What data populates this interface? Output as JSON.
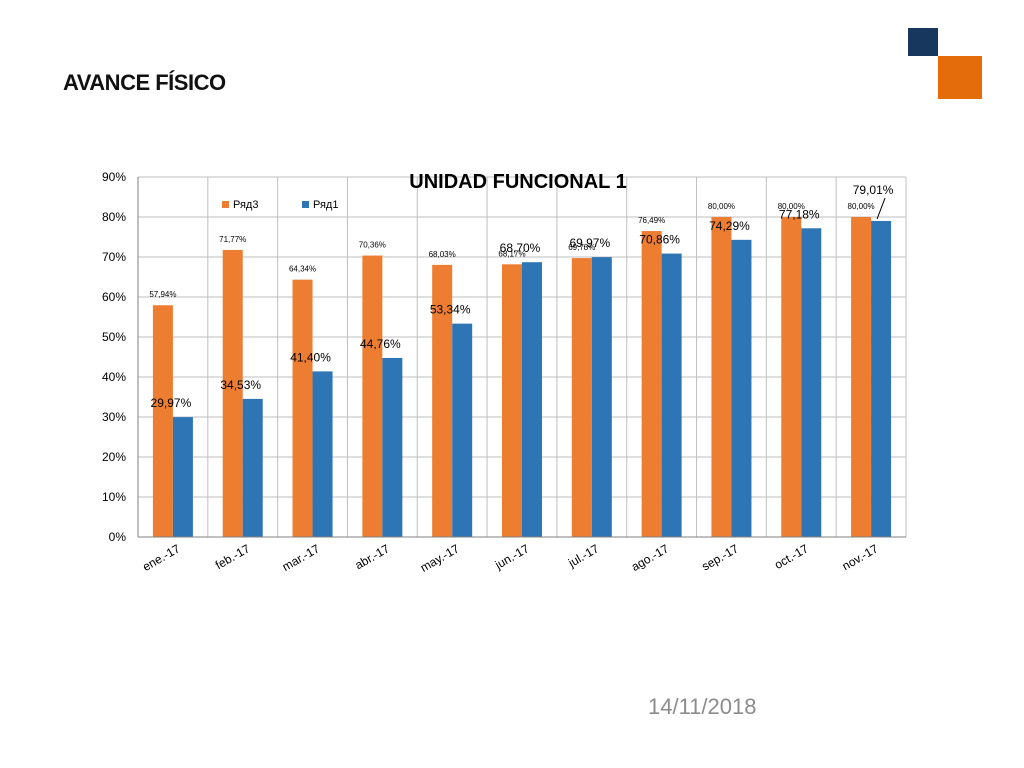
{
  "slide": {
    "title": "AVANCE FÍSICO",
    "date": "14/11/2018"
  },
  "colors": {
    "series_orange": "#ed7d31",
    "series_blue": "#2e75b6",
    "deco_dark": "#17375e",
    "deco_orange": "#e46c0a"
  },
  "chart_data": {
    "type": "bar",
    "title": "UNIDAD FUNCIONAL 1",
    "categories": [
      "ene.-17",
      "feb.-17",
      "mar.-17",
      "abr.-17",
      "may.-17",
      "jun.-17",
      "jul.-17",
      "ago.-17",
      "sep.-17",
      "oct.-17",
      "nov.-17"
    ],
    "series": [
      {
        "name": "Ряд3",
        "color": "#ed7d31",
        "values": [
          57.94,
          71.77,
          64.34,
          70.36,
          68.03,
          68.17,
          69.73,
          76.49,
          80.0,
          80.0,
          80.0
        ],
        "labels": [
          "57,94%",
          "71,77%",
          "64,34%",
          "70,36%",
          "68,03%",
          "68,17%",
          "69,73%",
          "76,49%",
          "80,00%",
          "80,00%",
          "80,00%"
        ]
      },
      {
        "name": "Ряд1",
        "color": "#2e75b6",
        "values": [
          29.97,
          34.53,
          41.4,
          44.76,
          53.34,
          68.7,
          69.97,
          70.86,
          74.29,
          77.18,
          79.01
        ],
        "labels": [
          "29,97%",
          "34,53%",
          "41,40%",
          "44,76%",
          "53,34%",
          "68,70%",
          "69,97%",
          "70,86%",
          "74,29%",
          "77,18%",
          "79,01%"
        ]
      }
    ],
    "ylim": [
      0,
      90
    ],
    "yticks": [
      "0%",
      "10%",
      "20%",
      "30%",
      "40%",
      "50%",
      "60%",
      "70%",
      "80%",
      "90%"
    ],
    "grid": true,
    "legend": "top-left"
  }
}
